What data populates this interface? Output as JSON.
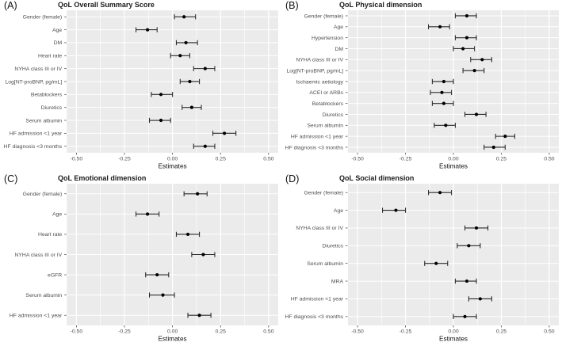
{
  "figure": {
    "background": "#ffffff",
    "panel_background": "#ebebeb",
    "gridline_color": "#ffffff",
    "errorbar_color": "#2b2b2b",
    "point_color": "#000000",
    "axis_text_color": "#4d4d4d",
    "tick_mark_color": "#333333",
    "title_color": "#1a1a1a",
    "x_tick_labels": [
      "-0.50",
      "-0.25",
      "0.00",
      "0.25",
      "0.50"
    ],
    "x_minor_ticks": [
      -0.375,
      -0.125,
      0.125,
      0.375
    ],
    "legend": "none",
    "grid": "on"
  },
  "chart_data": [
    {
      "type": "scatter",
      "subtype": "forest_errorbar",
      "tag": "(A)",
      "title": "QoL Overall Summary Score",
      "xlabel": "Estimates",
      "xlim": [
        -0.55,
        0.55
      ],
      "x_ticks": [
        -0.5,
        -0.25,
        0,
        0.25,
        0.5
      ],
      "points": [
        {
          "label": "Gender (female)",
          "estimate": 0.06,
          "ci_low": 0.01,
          "ci_high": 0.12
        },
        {
          "label": "Age",
          "estimate": -0.13,
          "ci_low": -0.19,
          "ci_high": -0.08
        },
        {
          "label": "DM",
          "estimate": 0.07,
          "ci_low": 0.02,
          "ci_high": 0.13
        },
        {
          "label": "Heart rate",
          "estimate": 0.04,
          "ci_low": -0.01,
          "ci_high": 0.09
        },
        {
          "label": "NYHA class III or IV",
          "estimate": 0.17,
          "ci_low": 0.11,
          "ci_high": 0.22
        },
        {
          "label": "Log[NT-proBNP, pg/mL]",
          "estimate": 0.09,
          "ci_low": 0.04,
          "ci_high": 0.14
        },
        {
          "label": "Betablockers",
          "estimate": -0.06,
          "ci_low": -0.11,
          "ci_high": 0.0
        },
        {
          "label": "Diuretics",
          "estimate": 0.1,
          "ci_low": 0.05,
          "ci_high": 0.15
        },
        {
          "label": "Serum albumin",
          "estimate": -0.06,
          "ci_low": -0.12,
          "ci_high": -0.01
        },
        {
          "label": "HF admission <1 year",
          "estimate": 0.27,
          "ci_low": 0.21,
          "ci_high": 0.33
        },
        {
          "label": "HF diagnosis <3 months",
          "estimate": 0.17,
          "ci_low": 0.11,
          "ci_high": 0.22
        }
      ]
    },
    {
      "type": "scatter",
      "subtype": "forest_errorbar",
      "tag": "(B)",
      "title": "QoL Physical dimension",
      "xlabel": "Estimates",
      "xlim": [
        -0.55,
        0.55
      ],
      "x_ticks": [
        -0.5,
        -0.25,
        0,
        0.25,
        0.5
      ],
      "points": [
        {
          "label": "Gender (female)",
          "estimate": 0.07,
          "ci_low": 0.01,
          "ci_high": 0.12
        },
        {
          "label": "Age",
          "estimate": -0.07,
          "ci_low": -0.13,
          "ci_high": -0.02
        },
        {
          "label": "Hypertension",
          "estimate": 0.07,
          "ci_low": 0.01,
          "ci_high": 0.12
        },
        {
          "label": "DM",
          "estimate": 0.05,
          "ci_low": 0.0,
          "ci_high": 0.11
        },
        {
          "label": "NYHA class III or IV",
          "estimate": 0.15,
          "ci_low": 0.09,
          "ci_high": 0.2
        },
        {
          "label": "Log[NT-proBNP, pg/mL]",
          "estimate": 0.11,
          "ci_low": 0.05,
          "ci_high": 0.16
        },
        {
          "label": "Ischaemic aetiology",
          "estimate": -0.05,
          "ci_low": -0.11,
          "ci_high": 0.0
        },
        {
          "label": "ACEI or ARBs",
          "estimate": -0.06,
          "ci_low": -0.12,
          "ci_high": -0.01
        },
        {
          "label": "Betablockers",
          "estimate": -0.05,
          "ci_low": -0.11,
          "ci_high": 0.0
        },
        {
          "label": "Diuretics",
          "estimate": 0.12,
          "ci_low": 0.06,
          "ci_high": 0.17
        },
        {
          "label": "Serum albumin",
          "estimate": -0.04,
          "ci_low": -0.1,
          "ci_high": 0.01
        },
        {
          "label": "HF admission <1 year",
          "estimate": 0.27,
          "ci_low": 0.22,
          "ci_high": 0.32
        },
        {
          "label": "HF diagnosis <3 months",
          "estimate": 0.21,
          "ci_low": 0.16,
          "ci_high": 0.27
        }
      ]
    },
    {
      "type": "scatter",
      "subtype": "forest_errorbar",
      "tag": "(C)",
      "title": "QoL Emotional dimension",
      "xlabel": "Estimates",
      "xlim": [
        -0.55,
        0.55
      ],
      "x_ticks": [
        -0.5,
        -0.25,
        0,
        0.25,
        0.5
      ],
      "points": [
        {
          "label": "Gender (female)",
          "estimate": 0.13,
          "ci_low": 0.06,
          "ci_high": 0.18
        },
        {
          "label": "Age",
          "estimate": -0.13,
          "ci_low": -0.19,
          "ci_high": -0.07
        },
        {
          "label": "Heart rate",
          "estimate": 0.08,
          "ci_low": 0.02,
          "ci_high": 0.14
        },
        {
          "label": "NYHA class III or IV",
          "estimate": 0.16,
          "ci_low": 0.1,
          "ci_high": 0.22
        },
        {
          "label": "eGFR",
          "estimate": -0.08,
          "ci_low": -0.14,
          "ci_high": -0.02
        },
        {
          "label": "Serum albumin",
          "estimate": -0.05,
          "ci_low": -0.12,
          "ci_high": 0.01
        },
        {
          "label": "HF admission <1 year",
          "estimate": 0.14,
          "ci_low": 0.08,
          "ci_high": 0.2
        }
      ]
    },
    {
      "type": "scatter",
      "subtype": "forest_errorbar",
      "tag": "(D)",
      "title": "QoL Social dimension",
      "xlabel": "Estimates",
      "xlim": [
        -0.55,
        0.55
      ],
      "x_ticks": [
        -0.5,
        -0.25,
        0,
        0.25,
        0.5
      ],
      "points": [
        {
          "label": "Gender (female)",
          "estimate": -0.07,
          "ci_low": -0.13,
          "ci_high": -0.01
        },
        {
          "label": "Age",
          "estimate": -0.3,
          "ci_low": -0.37,
          "ci_high": -0.25
        },
        {
          "label": "NYHA class III or IV",
          "estimate": 0.12,
          "ci_low": 0.06,
          "ci_high": 0.18
        },
        {
          "label": "Diuretics",
          "estimate": 0.08,
          "ci_low": 0.02,
          "ci_high": 0.14
        },
        {
          "label": "Serum albumin",
          "estimate": -0.09,
          "ci_low": -0.15,
          "ci_high": -0.03
        },
        {
          "label": "MRA",
          "estimate": 0.07,
          "ci_low": 0.01,
          "ci_high": 0.12
        },
        {
          "label": "HF admission <1 year",
          "estimate": 0.14,
          "ci_low": 0.08,
          "ci_high": 0.2
        },
        {
          "label": "HF diagnosis <3 months",
          "estimate": 0.06,
          "ci_low": 0.0,
          "ci_high": 0.12
        }
      ]
    }
  ]
}
